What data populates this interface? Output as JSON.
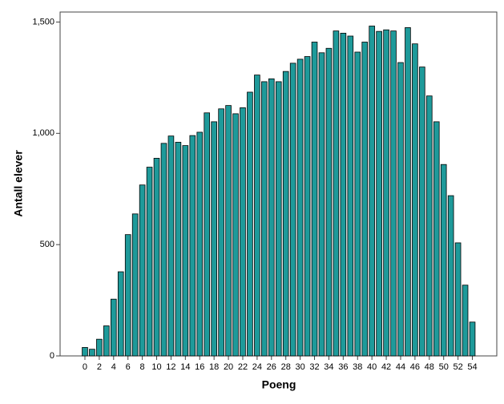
{
  "chart_data": {
    "type": "bar",
    "x_label": "Poeng",
    "y_label": "Antall elever",
    "categories": [
      "0",
      null,
      "2",
      null,
      "4",
      null,
      "6",
      null,
      "8",
      null,
      "10",
      null,
      "12",
      null,
      "14",
      null,
      "16",
      null,
      "18",
      null,
      "20",
      null,
      "22",
      null,
      "24",
      null,
      "26",
      null,
      "28",
      null,
      "30",
      null,
      "32",
      null,
      "34",
      null,
      "36",
      null,
      "38",
      null,
      "40",
      null,
      "42",
      null,
      "44",
      null,
      "46",
      null,
      "48",
      null,
      "50",
      null,
      "52",
      null,
      "54"
    ],
    "values": [
      38,
      30,
      75,
      135,
      255,
      378,
      545,
      638,
      768,
      848,
      888,
      955,
      988,
      960,
      945,
      990,
      1005,
      1092,
      1052,
      1110,
      1125,
      1088,
      1115,
      1185,
      1262,
      1232,
      1245,
      1232,
      1278,
      1315,
      1333,
      1345,
      1410,
      1362,
      1382,
      1460,
      1450,
      1437,
      1365,
      1410,
      1482,
      1458,
      1465,
      1460,
      1318,
      1475,
      1402,
      1298,
      1168,
      1052,
      860,
      720,
      508,
      318,
      152
    ],
    "color": "#1e9a9a",
    "ylim": [
      0,
      1545
    ],
    "yticks": [
      0,
      500,
      {
        "value": 1000,
        "label": "1,000"
      },
      {
        "value": 1500,
        "label": "1,500"
      }
    ]
  }
}
